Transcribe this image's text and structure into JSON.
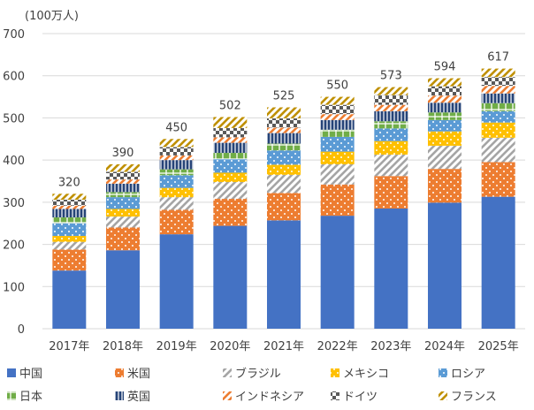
{
  "chart_data": {
    "type": "bar",
    "stacked": true,
    "unit_label": "(100万人)",
    "categories": [
      "2017年",
      "2018年",
      "2019年",
      "2020年",
      "2021年",
      "2022年",
      "2023年",
      "2024年",
      "2025年"
    ],
    "totals": [
      320,
      390,
      450,
      502,
      525,
      550,
      573,
      594,
      617
    ],
    "ylim": [
      0,
      700
    ],
    "yticks": [
      0,
      100,
      200,
      300,
      400,
      500,
      600,
      700
    ],
    "grid": true,
    "legend_position": "bottom",
    "series": [
      {
        "name": "中国",
        "color": "#4472C4",
        "pattern": "solid",
        "values": [
          138,
          186,
          224,
          244,
          257,
          268,
          285,
          299,
          313
        ]
      },
      {
        "name": "米国",
        "color": "#ED7D31",
        "pattern": "dots",
        "values": [
          50,
          54,
          58,
          64,
          65,
          74,
          77,
          80,
          82
        ]
      },
      {
        "name": "ブラジル",
        "color": "#A5A5A5",
        "pattern": "diag",
        "values": [
          18,
          26,
          30,
          40,
          43,
          48,
          51,
          55,
          58
        ]
      },
      {
        "name": "メキシコ",
        "color": "#FFC000",
        "pattern": "dots",
        "values": [
          14,
          18,
          22,
          22,
          24,
          30,
          32,
          34,
          36
        ]
      },
      {
        "name": "ロシア",
        "color": "#5B9BD5",
        "pattern": "dots",
        "values": [
          30,
          28,
          30,
          32,
          34,
          35,
          30,
          27,
          27
        ]
      },
      {
        "name": "日本",
        "color": "#70AD47",
        "pattern": "grid",
        "values": [
          14,
          12,
          14,
          15,
          16,
          17,
          17,
          18,
          19
        ]
      },
      {
        "name": "英国",
        "color": "#264478",
        "pattern": "vlines",
        "values": [
          20,
          20,
          22,
          24,
          25,
          23,
          24,
          23,
          23
        ]
      },
      {
        "name": "インドネシア",
        "color": "#ED7D31",
        "pattern": "diag",
        "values": [
          8,
          10,
          11,
          13,
          13,
          14,
          15,
          17,
          18
        ]
      },
      {
        "name": "ドイツ",
        "color": "#595959",
        "pattern": "check",
        "values": [
          14,
          18,
          20,
          22,
          22,
          22,
          23,
          22,
          21
        ]
      },
      {
        "name": "フランス",
        "color": "#BF9000",
        "pattern": "diag",
        "values": [
          14,
          18,
          19,
          26,
          26,
          19,
          19,
          19,
          20
        ]
      }
    ]
  }
}
